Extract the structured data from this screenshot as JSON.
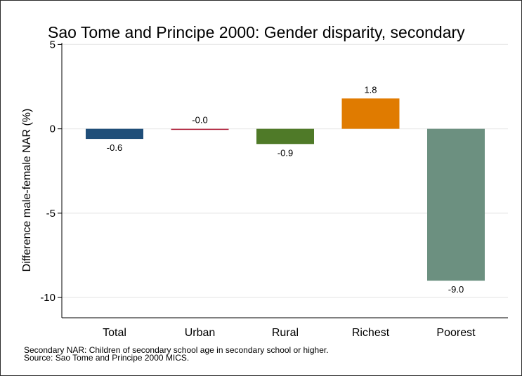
{
  "chart_data": {
    "type": "bar",
    "title": "Sao Tome and Principe 2000: Gender disparity, secondary",
    "ylabel": "Difference male-female NAR (%)",
    "xlabel": "",
    "categories": [
      "Total",
      "Urban",
      "Rural",
      "Richest",
      "Poorest"
    ],
    "values": [
      -0.6,
      -0.0,
      -0.9,
      1.8,
      -9.0
    ],
    "value_labels": [
      "-0.6",
      "-0.0",
      "-0.9",
      "1.8",
      "-9.0"
    ],
    "bar_colors": [
      "#1f4e79",
      "#b0203a",
      "#4f7a28",
      "#e07b00",
      "#6c9080"
    ],
    "ylim": [
      -11.2,
      5.1
    ],
    "yticks": [
      5,
      0,
      -5,
      -10
    ],
    "ytick_labels": [
      "5",
      "0",
      "-5",
      "-10"
    ],
    "grid": true,
    "grid_color": "#eaeaea"
  },
  "notes": {
    "line1": "Secondary NAR: Children of secondary school age in secondary school or higher.",
    "line2": "Source: Sao Tome and Principe 2000 MICS."
  }
}
